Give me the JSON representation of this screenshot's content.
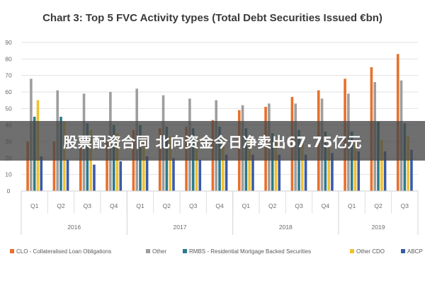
{
  "chart_data": {
    "type": "bar",
    "title": "Chart 3: Top 5 FVC Activity types (Total Debt Securities Issued €bn)",
    "ylim": [
      0,
      90
    ],
    "yticks": [
      0,
      10,
      20,
      30,
      40,
      50,
      60,
      70,
      80,
      90
    ],
    "grid": true,
    "legend_position": "bottom",
    "categories": [
      "Q1",
      "Q2",
      "Q3",
      "Q4",
      "Q1",
      "Q2",
      "Q3",
      "Q4",
      "Q1",
      "Q2",
      "Q3",
      "Q4",
      "Q1",
      "Q2",
      "Q3"
    ],
    "years": [
      {
        "label": "2016",
        "count": 4
      },
      {
        "label": "2017",
        "count": 4
      },
      {
        "label": "2018",
        "count": 4
      },
      {
        "label": "2019",
        "count": 3
      }
    ],
    "series": [
      {
        "name": "CLO - Collateralised Loan Obligations",
        "color": "#e8702a",
        "values": [
          30,
          30,
          30,
          30,
          37,
          38,
          39,
          43,
          49,
          51,
          57,
          61,
          68,
          75,
          83
        ]
      },
      {
        "name": "Other",
        "color": "#9e9e9e",
        "values": [
          68,
          61,
          59,
          60,
          62,
          58,
          56,
          55,
          52,
          53,
          53,
          56,
          59,
          66,
          67
        ]
      },
      {
        "name": "RMBS - Residential Mortgage Backed Securities",
        "color": "#2d7a8c",
        "values": [
          45,
          45,
          41,
          40,
          40,
          39,
          38,
          39,
          38,
          35,
          37,
          36,
          36,
          42,
          41
        ]
      },
      {
        "name": "Other CDO",
        "color": "#f2c12e",
        "values": [
          55,
          42,
          37,
          35,
          34,
          33,
          32,
          31,
          31,
          31,
          30,
          30,
          30,
          31,
          33
        ]
      },
      {
        "name": "ABCP",
        "color": "#3b5ba8",
        "values": [
          21,
          19,
          16,
          18,
          21,
          20,
          19,
          22,
          22,
          22,
          22,
          23,
          24,
          24,
          25
        ]
      }
    ]
  },
  "overlay": {
    "text": "股票配资合同 北向资金今日净卖出67.75亿元"
  }
}
